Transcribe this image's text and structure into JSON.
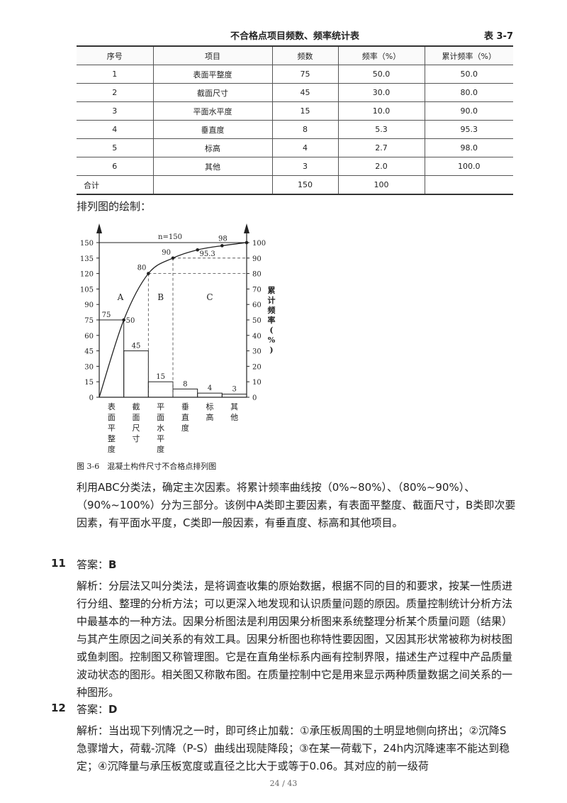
{
  "table": {
    "title": "不合格点项目频数、频率统计表",
    "number": "表 3-7",
    "headers": [
      "序号",
      "项目",
      "频数",
      "频率（%）",
      "累计频率（%）"
    ],
    "rows": [
      [
        "1",
        "表面平整度",
        "75",
        "50.0",
        "50.0"
      ],
      [
        "2",
        "截面尺寸",
        "45",
        "30.0",
        "80.0"
      ],
      [
        "3",
        "平面水平度",
        "15",
        "10.0",
        "90.0"
      ],
      [
        "4",
        "垂直度",
        "8",
        "5.3",
        "95.3"
      ],
      [
        "5",
        "标高",
        "4",
        "2.7",
        "98.0"
      ],
      [
        "6",
        "其他",
        "3",
        "2.0",
        "100.0"
      ]
    ],
    "total": [
      "合计",
      "",
      "150",
      "100",
      ""
    ]
  },
  "heading": "排列图的绘制：",
  "chart_data": {
    "type": "bar",
    "categories": [
      "表面平整度",
      "截面尺寸",
      "平面水平度",
      "垂直度",
      "标高",
      "其他"
    ],
    "values": [
      75,
      45,
      15,
      8,
      4,
      3
    ],
    "cumulative": [
      50.0,
      80.0,
      90.0,
      95.3,
      98.0,
      100.0
    ],
    "left_ticks": [
      "0",
      "15",
      "30",
      "45",
      "60",
      "75",
      "90",
      "105",
      "120",
      "135",
      "150"
    ],
    "right_ticks": [
      "0",
      "10",
      "20",
      "30",
      "40",
      "50",
      "60",
      "70",
      "80",
      "90",
      "100"
    ],
    "ylim": [
      0,
      150
    ],
    "y2lim": [
      0,
      100
    ],
    "n_label": "n=150",
    "zone_labels": [
      "A",
      "B",
      "C"
    ],
    "right_axis_label": "累计频率(%)",
    "caption": "图 3-6　混凝土构件尺寸不合格点排列图",
    "grid": false
  },
  "para1": "利用ABC分类法，确定主次因素。将累计频率曲线按（0%~80%）、（80%~90%）、（90%~100%）分为三部分。该例中A类即主要因素，有表面平整度、截面尺寸，B类即次要因素，有平面水平度，C类即一般因素，有垂直度、标高和其他项目。",
  "q11": {
    "num": "11",
    "answer_label": "答案：",
    "answer": "B"
  },
  "para11": "解析：分层法又叫分类法，是将调查收集的原始数据，根据不同的目的和要求，按某一性质进行分组、整理的分析方法；可以更深入地发现和认识质量问题的原因。质量控制统计分析方法中最基本的一种方法。因果分析图法是利用因果分析图来系统整理分析某个质量问题（结果）与其产生原因之间关系的有效工具。因果分析图也称特性要因图，又因其形状常被称为树枝图或鱼刺图。控制图又称管理图。它是在直角坐标系内画有控制界限，描述生产过程中产品质量波动状态的图形。相关图又称散布图。在质量控制中它是用来显示两种质量数据之间关系的一种图形。",
  "q12": {
    "num": "12",
    "answer_label": "答案：",
    "answer": "D"
  },
  "para12": "解析：当出现下列情况之一时，即可终止加载：①承压板周围的土明显地侧向挤出；②沉降S急骤增大，荷载-沉降（P-S）曲线出现陡降段；③在某一荷载下，24h内沉降速率不能达到稳定；④沉降量与承压板宽度或直径之比大于或等于0.06。其对应的前一级荷",
  "page": "24 / 43"
}
